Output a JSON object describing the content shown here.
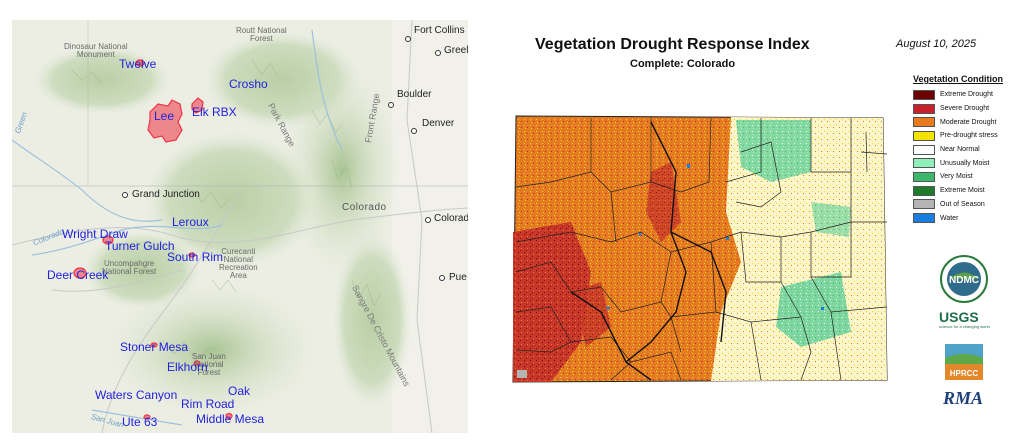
{
  "fire_map": {
    "places": [
      {
        "key": "dinosaur",
        "text": "Dinosaur National\nMonument"
      },
      {
        "key": "routt",
        "text": "Routt National\nForest"
      },
      {
        "key": "uncompahgre",
        "text": "Uncompahgre\nNational Forest"
      },
      {
        "key": "curecanti",
        "text": "Curecanti\nNational\nRecreation\nArea"
      },
      {
        "key": "sanjuan",
        "text": "San Juan\nNational\nForest"
      }
    ],
    "cities": [
      "Fort Collins",
      "Greel",
      "Boulder",
      "Denver",
      "Grand Junction",
      "Colorad",
      "Pue"
    ],
    "state_label": "Colorado",
    "ranges": [
      "Park Range",
      "Front Range",
      "Sangre De Cristo Mountains"
    ],
    "rivers": [
      "Green",
      "Colorado",
      "San Juan"
    ],
    "fires": [
      "Twelve",
      "Crosho",
      "Elk RBX",
      "Lee",
      "Leroux",
      "Wright Draw",
      "Turner Gulch",
      "South Rim",
      "Deer Creek",
      "Stoner Mesa",
      "Elkhorn",
      "Oak",
      "Waters Canyon",
      "Rim Road",
      "Middle Mesa",
      "Ute 63"
    ],
    "fire_color": "#ee3344",
    "label_color": "#2222dd"
  },
  "vegdri": {
    "title": "Vegetation Drought Response Index",
    "subtitle": "Complete: Colorado",
    "date": "August 10, 2025",
    "legend_title": "Vegetation Condition",
    "legend": [
      {
        "label": "Extreme Drought",
        "color": "#6b0000"
      },
      {
        "label": "Severe Drought",
        "color": "#c8202a"
      },
      {
        "label": "Moderate Drought",
        "color": "#e87a1e"
      },
      {
        "label": "Pre-drought stress",
        "color": "#f5e100"
      },
      {
        "label": "Near Normal",
        "color": "#ffffff"
      },
      {
        "label": "Unusually Moist",
        "color": "#8ef0b8"
      },
      {
        "label": "Very Moist",
        "color": "#3cb86a"
      },
      {
        "label": "Extreme Moist",
        "color": "#1f7a2e"
      },
      {
        "label": "Out of Season",
        "color": "#b4b4b4"
      },
      {
        "label": "Water",
        "color": "#1a7de0"
      }
    ],
    "logos": [
      {
        "key": "ndmc",
        "text": "NDMC"
      },
      {
        "key": "usgs",
        "text": "USGS"
      },
      {
        "key": "usgs_tag",
        "text": "science for a changing world"
      },
      {
        "key": "hprcc",
        "text": "HPRCC"
      },
      {
        "key": "rma",
        "text": "RMA"
      }
    ]
  }
}
